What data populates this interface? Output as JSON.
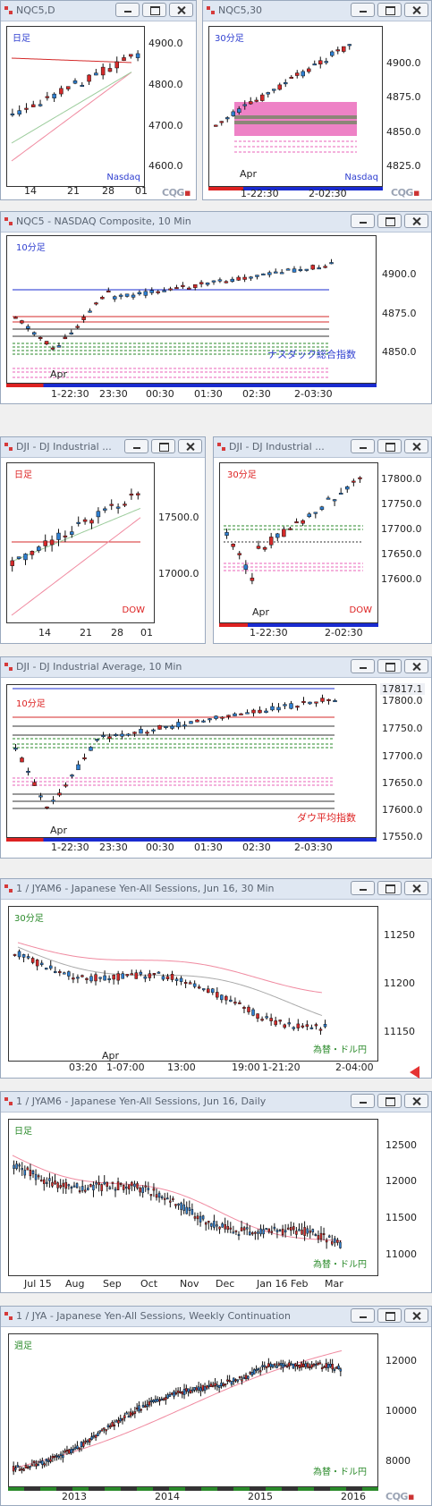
{
  "windows": {
    "w1": {
      "title": "NQC5,D",
      "ptag": "日足",
      "symbol_tag": "Nasdaq",
      "y_ticks": [
        "4900.0",
        "4800.0",
        "4700.0",
        "4600.0"
      ],
      "x_ticks": [
        "14",
        "21",
        "28",
        "01"
      ]
    },
    "w2": {
      "title": "NQC5,30",
      "ptag": "30分足",
      "symbol_tag": "Nasdaq",
      "y_ticks": [
        "4900.0",
        "4875.0",
        "4850.0",
        "4825.0"
      ],
      "x_ticks": [
        "Apr",
        "1-22:30",
        "2-02:30"
      ]
    },
    "w3": {
      "title": "NQC5 - NASDAQ Composite, 10 Min",
      "ptag": "10分足",
      "symbol_tag": "ナスダック総合指数",
      "y_ticks": [
        "4900.0",
        "4875.0",
        "4850.0"
      ],
      "x_ticks": [
        "Apr",
        "1-22:30",
        "23:30",
        "00:30",
        "01:30",
        "02:30",
        "2-03:30"
      ]
    },
    "w4": {
      "title": "DJI - DJ Industrial ...",
      "ptag": "日足",
      "symbol_tag": "DOW",
      "y_ticks": [
        "17500.0",
        "17000.0"
      ],
      "x_ticks": [
        "14",
        "21",
        "28",
        "01"
      ]
    },
    "w5": {
      "title": "DJI - DJ Industrial ...",
      "ptag": "30分足",
      "symbol_tag": "DOW",
      "y_ticks": [
        "17800.0",
        "17750.0",
        "17700.0",
        "17650.0",
        "17600.0"
      ],
      "x_ticks": [
        "Apr",
        "1-22:30",
        "2-02:30"
      ]
    },
    "w6": {
      "title": "DJI - DJ Industrial Average, 10 Min",
      "ptag": "10分足",
      "symbol_tag": "ダウ平均指数",
      "last_price": "17817.1",
      "y_ticks": [
        "17800.0",
        "17750.0",
        "17700.0",
        "17650.0",
        "17600.0",
        "17550.0"
      ],
      "x_ticks": [
        "Apr",
        "1-22:30",
        "23:30",
        "00:30",
        "01:30",
        "02:30",
        "2-03:30"
      ]
    },
    "w7": {
      "title": "1 / JYAM6 - Japanese Yen-All Sessions, Jun 16, 30 Min",
      "ptag": "30分足",
      "symbol_tag": "為替・ドル円",
      "y_ticks": [
        "11250",
        "11200",
        "11150"
      ],
      "x_ticks": [
        "Apr",
        "03:20",
        "1-07:00",
        "13:00",
        "19:00",
        "1-21:20",
        "2-04:00"
      ]
    },
    "w8": {
      "title": "1 / JYAM6 - Japanese Yen-All Sessions, Jun 16, Daily",
      "ptag": "日足",
      "symbol_tag": "為替・ドル円",
      "y_ticks": [
        "12500",
        "12000",
        "11500",
        "11000"
      ],
      "x_ticks": [
        "Jul 15",
        "Aug",
        "Sep",
        "Oct",
        "Nov",
        "Dec",
        "Jan 16",
        "Feb",
        "Mar"
      ]
    },
    "w9": {
      "title": "1 / JYA - Japanese Yen-All Sessions, Weekly Continuation",
      "ptag": "週足",
      "symbol_tag": "為替・ドル円",
      "y_ticks": [
        "12000",
        "10000",
        "8000"
      ],
      "x_ticks": [
        "2013",
        "2014",
        "2015",
        "2016"
      ]
    }
  },
  "logo": "CQG",
  "colors": {
    "up": "#2f7fd0",
    "down": "#d42a2a",
    "ma_red": "#d42a2a",
    "ma_pink": "#f08aa0",
    "ma_green": "#9ccc9c",
    "zone_pink": "#ea63b8",
    "blue_line": "#1a2bd0"
  }
}
